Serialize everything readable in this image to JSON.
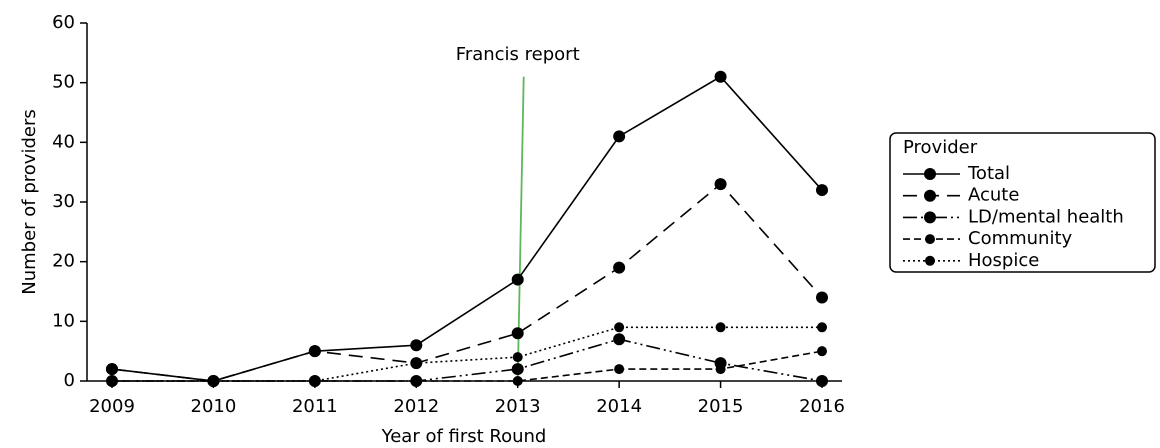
{
  "chart_data": {
    "type": "line",
    "xlabel": "Year of first Round",
    "ylabel": "Number of providers",
    "categories": [
      "2009",
      "2010",
      "2011",
      "2012",
      "2013",
      "2014",
      "2015",
      "2016"
    ],
    "series": [
      {
        "name": "Total",
        "color": "#000000",
        "dash": "solid",
        "values": [
          2,
          0,
          5,
          6,
          17,
          41,
          51,
          32
        ]
      },
      {
        "name": "Acute",
        "color": "#000000",
        "dash": "long-dash",
        "values": [
          2,
          0,
          5,
          3,
          8,
          19,
          33,
          14
        ]
      },
      {
        "name": "LD/mental health",
        "color": "#000000",
        "dash": "dash-dot-dot",
        "values": [
          0,
          0,
          0,
          0,
          2,
          7,
          3,
          0
        ]
      },
      {
        "name": "Community",
        "color": "#000000",
        "dash": "short-dash",
        "values": [
          0,
          0,
          0,
          0,
          0,
          2,
          2,
          5
        ]
      },
      {
        "name": "Hospice",
        "color": "#000000",
        "dash": "dotted",
        "values": [
          0,
          0,
          0,
          3,
          4,
          9,
          9,
          9
        ]
      }
    ],
    "ylim": [
      0,
      60
    ],
    "yticks": [
      0,
      10,
      20,
      30,
      40,
      50,
      60
    ],
    "legend_title": "Provider",
    "legend": "right",
    "annotations": [
      {
        "text": "Francis report",
        "x": "2013",
        "color": "#5cb85c"
      }
    ]
  }
}
